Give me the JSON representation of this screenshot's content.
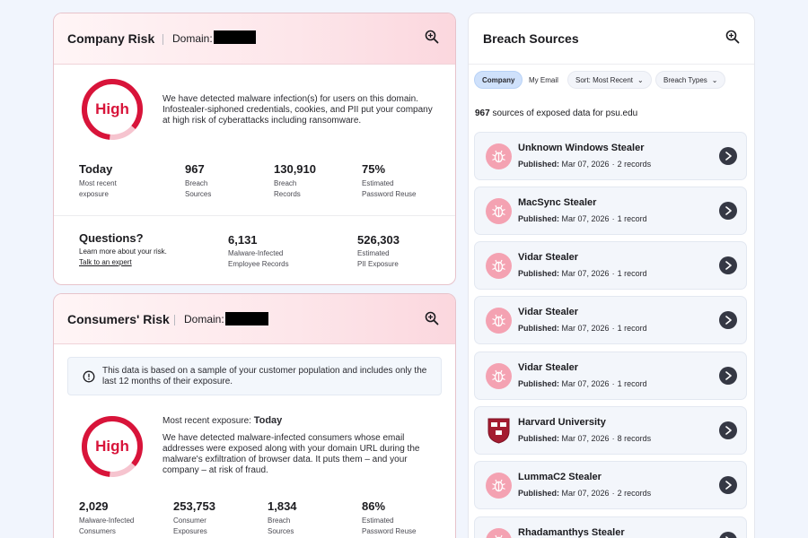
{
  "company_risk": {
    "title": "Company Risk",
    "domain_label": "Domain:",
    "gauge_label": "High",
    "description": "We have detected malware infection(s) for users on this domain. Infostealer-siphoned credentials, cookies, and PII put your company at high risk of cyberattacks including ransomware.",
    "stats": [
      {
        "value": "Today",
        "label_1": "Most recent",
        "label_2": "exposure"
      },
      {
        "value": "967",
        "label_1": "Breach",
        "label_2": "Sources"
      },
      {
        "value": "130,910",
        "label_1": "Breach",
        "label_2": "Records"
      },
      {
        "value": "75%",
        "label_1": "Estimated",
        "label_2": "Password Reuse"
      }
    ],
    "questions": {
      "title": "Questions?",
      "subtitle": "Learn more about your risk.",
      "link": "Talk to an expert"
    },
    "extra_stats": [
      {
        "value": "6,131",
        "label_1": "Malware-Infected",
        "label_2": "Employee Records"
      },
      {
        "value": "526,303",
        "label_1": "Estimated",
        "label_2": "PII Exposure"
      }
    ]
  },
  "consumers_risk": {
    "title": "Consumers' Risk",
    "domain_label": "Domain:",
    "notice": "This data is based on a sample of your customer population and includes only the last 12 months of their exposure.",
    "gauge_label": "High",
    "recent_label": "Most recent exposure:",
    "recent_value": "Today",
    "description": "We have detected malware-infected consumers whose email addresses were exposed along with your domain URL during the malware's exfiltration of browser data. It puts them – and your company – at risk of fraud.",
    "stats": [
      {
        "value": "2,029",
        "label_1": "Malware-Infected",
        "label_2": "Consumers"
      },
      {
        "value": "253,753",
        "label_1": "Consumer",
        "label_2": "Exposures"
      },
      {
        "value": "1,834",
        "label_1": "Breach",
        "label_2": "Sources"
      },
      {
        "value": "86%",
        "label_1": "Estimated",
        "label_2": "Password Reuse"
      }
    ]
  },
  "breach_sources": {
    "title": "Breach Sources",
    "filters": {
      "company": "Company",
      "my_email": "My Email",
      "sort": "Sort: Most Recent",
      "types": "Breach Types"
    },
    "count": "967",
    "count_text": "sources of exposed data for psu.edu",
    "published_label": "Published:",
    "items": [
      {
        "name": "Unknown Windows Stealer",
        "date": "Mar 07, 2026",
        "records": "2 records",
        "icon": "bug-icon"
      },
      {
        "name": "MacSync Stealer",
        "date": "Mar 07, 2026",
        "records": "1 record",
        "icon": "bug-icon"
      },
      {
        "name": "Vidar Stealer",
        "date": "Mar 07, 2026",
        "records": "1 record",
        "icon": "bug-icon"
      },
      {
        "name": "Vidar Stealer",
        "date": "Mar 07, 2026",
        "records": "1 record",
        "icon": "bug-icon"
      },
      {
        "name": "Vidar Stealer",
        "date": "Mar 07, 2026",
        "records": "1 record",
        "icon": "bug-icon"
      },
      {
        "name": "Harvard University",
        "date": "Mar 07, 2026",
        "records": "8 records",
        "icon": "crest-icon"
      },
      {
        "name": "LummaC2 Stealer",
        "date": "Mar 07, 2026",
        "records": "2 records",
        "icon": "bug-icon"
      },
      {
        "name": "Rhadamanthys Stealer",
        "date": "",
        "records": "",
        "icon": "bug-icon"
      }
    ]
  },
  "colors": {
    "risk_red": "#d8143a",
    "page_bg": "#f1f5fd",
    "chip_active": "#cfe1fb",
    "arrow_dark": "#353844"
  }
}
